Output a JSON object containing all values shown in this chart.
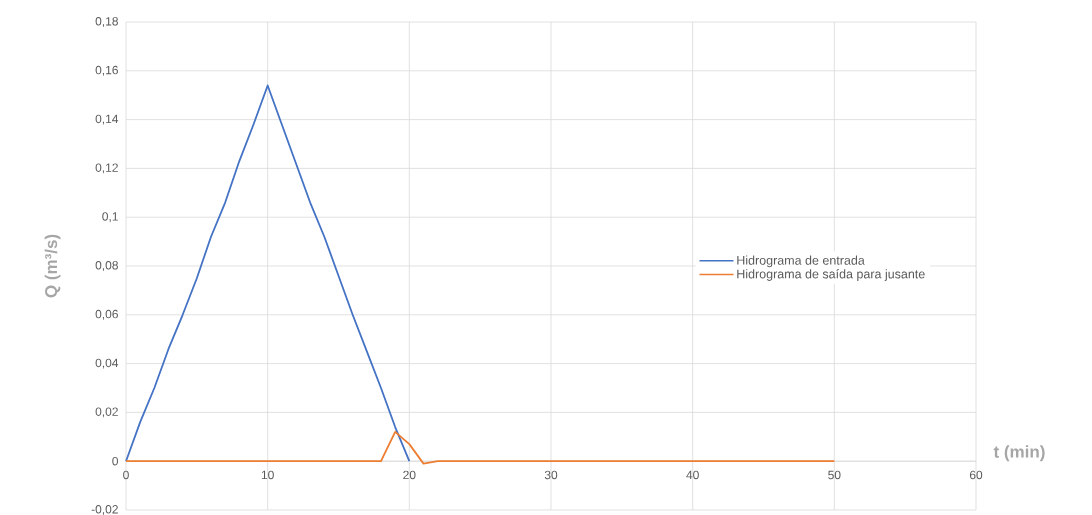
{
  "chart_data": {
    "type": "line",
    "xlabel": "t (min)",
    "ylabel": "Q (m³/s)",
    "x": [
      0,
      1,
      2,
      3,
      4,
      5,
      6,
      7,
      8,
      9,
      10,
      11,
      12,
      13,
      14,
      15,
      16,
      17,
      18,
      19,
      20
    ],
    "series": [
      {
        "name": "Hidrograma  de entrada",
        "color": "#4472c4",
        "values": [
          0,
          0.016,
          0.03,
          0.046,
          0.06,
          0.075,
          0.092,
          0.106,
          0.123,
          0.138,
          0.154,
          0.138,
          0.122,
          0.106,
          0.092,
          0.076,
          0.06,
          0.045,
          0.03,
          0.014,
          0
        ]
      },
      {
        "name": "Hidrograma  de saída para jusante",
        "color": "#ed7d31",
        "x": [
          0,
          18,
          19,
          20,
          21,
          22,
          50
        ],
        "values": [
          0,
          0,
          0.012,
          0.007,
          -0.001,
          0,
          0
        ]
      }
    ],
    "xlim": [
      0,
      60
    ],
    "xticks": [
      0,
      10,
      20,
      30,
      40,
      50,
      60
    ],
    "ylim": [
      -0.02,
      0.18
    ],
    "yticks": [
      {
        "value": -0.02,
        "label": "-0,02"
      },
      {
        "value": 0,
        "label": "0"
      },
      {
        "value": 0.02,
        "label": "0,02"
      },
      {
        "value": 0.04,
        "label": "0,04"
      },
      {
        "value": 0.06,
        "label": "0,06"
      },
      {
        "value": 0.08,
        "label": "0,08"
      },
      {
        "value": 0.1,
        "label": "0,1"
      },
      {
        "value": 0.12,
        "label": "0,12"
      },
      {
        "value": 0.14,
        "label": "0,14"
      },
      {
        "value": 0.16,
        "label": "0,16"
      },
      {
        "value": 0.18,
        "label": "0,18"
      }
    ],
    "grid": true,
    "legend": "right",
    "marker": "none",
    "line_style": "solid"
  }
}
